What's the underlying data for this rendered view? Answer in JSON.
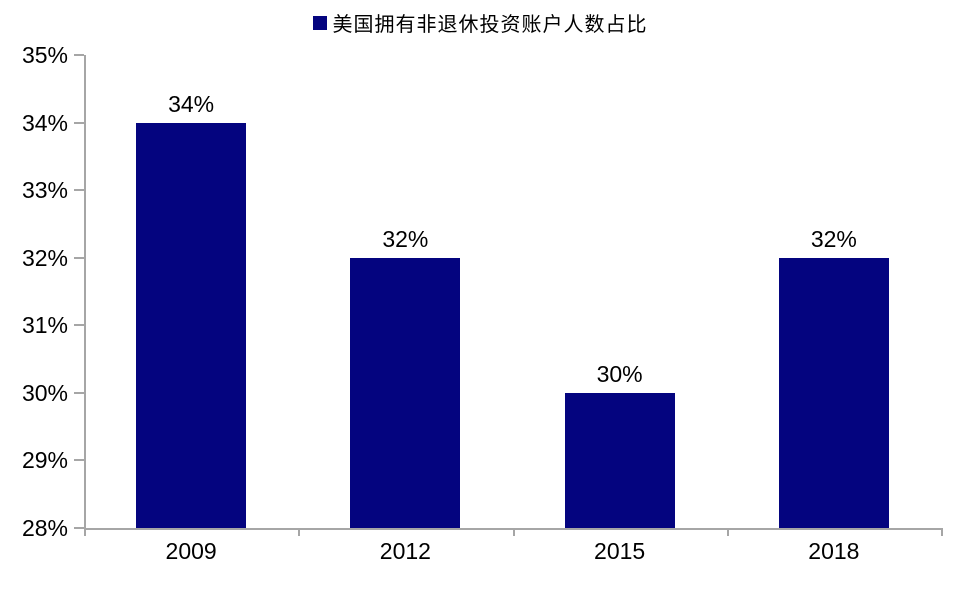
{
  "chart_data": {
    "type": "bar",
    "title": "",
    "legend": "美国拥有非退休投资账户人数占比",
    "legend_position": "top-center",
    "categories": [
      "2009",
      "2012",
      "2015",
      "2018"
    ],
    "values": [
      34,
      32,
      30,
      32
    ],
    "value_labels": [
      "34%",
      "32%",
      "30%",
      "32%"
    ],
    "ytick_labels": [
      "28%",
      "29%",
      "30%",
      "31%",
      "32%",
      "33%",
      "34%",
      "35%"
    ],
    "ylim": [
      28,
      35
    ],
    "ytick_step": 1,
    "xlabel": "",
    "ylabel": "",
    "grid": false,
    "bar_color": "#04047f",
    "axis_color": "#a6a6a6",
    "text_color": "#000000"
  }
}
